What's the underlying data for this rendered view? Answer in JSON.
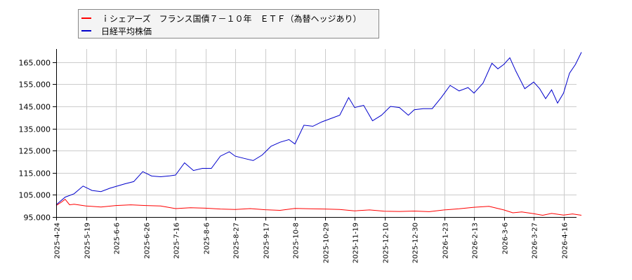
{
  "legend": {
    "items": [
      {
        "label": "ｉシェアーズ　フランス国債７－１０年　ＥＴＦ（為替ヘッジあり）",
        "color": "#ff0000"
      },
      {
        "label": "日経平均株価",
        "color": "#0000cc"
      }
    ]
  },
  "chart_data": {
    "type": "line",
    "title": "",
    "xlabel": "",
    "ylabel": "",
    "ylim": [
      95000,
      170000
    ],
    "grid": true,
    "legend_position": "top-left",
    "y_ticks": [
      "95.000",
      "105.000",
      "115.000",
      "125.000",
      "135.000",
      "145.000",
      "155.000",
      "165.000"
    ],
    "y_tick_values": [
      95000,
      105000,
      115000,
      125000,
      135000,
      145000,
      155000,
      165000
    ],
    "x_ticks": [
      "2025-4-24",
      "2025-5-19",
      "2025-6-6",
      "2025-6-26",
      "2025-7-16",
      "2025-8-6",
      "2025-8-27",
      "2025-9-17",
      "2025-10-8",
      "2025-10-29",
      "2025-11-19",
      "2025-12-10",
      "2025-12-30",
      "2026-1-23",
      "2026-2-13",
      "2026-3-6",
      "2026-3-27",
      "2026-4-16"
    ],
    "series": [
      {
        "name": "ｉシェアーズ　フランス国債７－１０年　ＥＴＦ（為替ヘッジあり）",
        "color": "#ff0000",
        "x_index": [
          0,
          0.15,
          0.3,
          0.45,
          0.6,
          1,
          1.5,
          2,
          2.5,
          3,
          3.5,
          4,
          4.5,
          5,
          5.5,
          6,
          6.5,
          7,
          7.5,
          8,
          8.5,
          9,
          9.5,
          10,
          10.5,
          11,
          11.5,
          12,
          12.5,
          13,
          13.5,
          14,
          14.5,
          15,
          15.3,
          15.6,
          16,
          16.3,
          16.6,
          17,
          17.3,
          17.6
        ],
        "values": [
          100200,
          101500,
          103000,
          100500,
          100800,
          100000,
          99500,
          100200,
          100500,
          100200,
          100000,
          98800,
          99200,
          99000,
          98600,
          98400,
          98800,
          98300,
          98000,
          98900,
          98700,
          98600,
          98400,
          97800,
          98200,
          97600,
          97500,
          97700,
          97400,
          98200,
          98700,
          99400,
          99800,
          98200,
          96900,
          97300,
          96500,
          95800,
          96600,
          95900,
          96400,
          95800
        ]
      },
      {
        "name": "日経平均株価",
        "color": "#0000cc",
        "x_index": [
          0,
          0.3,
          0.6,
          0.9,
          1.2,
          1.5,
          1.8,
          2.0,
          2.3,
          2.6,
          2.9,
          3.2,
          3.5,
          3.8,
          4.0,
          4.3,
          4.6,
          4.9,
          5.2,
          5.5,
          5.8,
          6.0,
          6.3,
          6.6,
          6.9,
          7.2,
          7.5,
          7.8,
          8.0,
          8.3,
          8.6,
          8.9,
          9.2,
          9.5,
          9.8,
          10.0,
          10.3,
          10.6,
          10.9,
          11.2,
          11.5,
          11.8,
          12.0,
          12.3,
          12.6,
          12.9,
          13.2,
          13.5,
          13.8,
          14.0,
          14.3,
          14.6,
          14.8,
          15.0,
          15.2,
          15.4,
          15.7,
          16.0,
          16.2,
          16.4,
          16.6,
          16.8,
          17.0,
          17.2,
          17.4,
          17.6
        ],
        "values": [
          100500,
          104000,
          105500,
          109000,
          107000,
          106500,
          108000,
          108800,
          110000,
          111000,
          115500,
          113500,
          113200,
          113600,
          114000,
          119500,
          116000,
          117000,
          117000,
          122500,
          124500,
          122500,
          121500,
          120500,
          123000,
          127000,
          128800,
          130000,
          128000,
          136500,
          136000,
          138000,
          139500,
          141000,
          149000,
          144500,
          145500,
          138500,
          141000,
          145000,
          144500,
          141000,
          143500,
          144000,
          144000,
          149000,
          154500,
          152000,
          153500,
          151000,
          155500,
          164500,
          162000,
          164000,
          167000,
          161000,
          153000,
          156000,
          153000,
          148500,
          152500,
          146500,
          151000,
          160000,
          164000,
          169500
        ]
      }
    ]
  }
}
